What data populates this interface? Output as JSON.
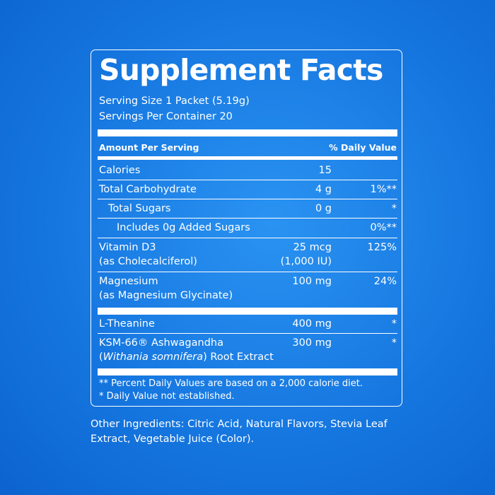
{
  "title": "Supplement Facts",
  "serving_size": "Serving Size 1 Packet (5.19g)",
  "servings_per_container": "Servings Per Container 20",
  "header": {
    "amount_per_serving": "Amount Per Serving",
    "daily_value": "% Daily Value"
  },
  "rows": {
    "calories": {
      "name": "Calories",
      "amount": "15",
      "dv": ""
    },
    "total_carbohydrate": {
      "name": "Total Carbohydrate",
      "amount": "4 g",
      "dv": "1%**"
    },
    "total_sugars": {
      "name": "Total Sugars",
      "amount": "0 g",
      "dv": "*"
    },
    "added_sugars": {
      "name": "Includes 0g Added Sugars",
      "amount": "",
      "dv": "0%**"
    },
    "vitamin_d3": {
      "name": "Vitamin D3",
      "sub": "(as Cholecalciferol)",
      "amount": "25 mcg",
      "amount2": "(1,000 IU)",
      "dv": "125%"
    },
    "magnesium": {
      "name": "Magnesium",
      "sub": "(as Magnesium Glycinate)",
      "amount": "100 mg",
      "dv": "24%"
    },
    "l_theanine": {
      "name": "L-Theanine",
      "amount": "400 mg",
      "dv": "*"
    },
    "ashwagandha": {
      "name": "KSM-66® Ashwagandha",
      "sub_open": "(",
      "sub_italic": "Withania somnifera",
      "sub_rest": ") Root Extract",
      "amount": "300 mg",
      "dv": "*"
    }
  },
  "footnotes": {
    "line1": "** Percent Daily Values are based on a 2,000 calorie diet.",
    "line2": "* Daily Value not established."
  },
  "other_ingredients": "Other Ingredients: Citric Acid, Natural Flavors, Stevia Leaf Extract, Vegetable Juice (Color).",
  "colors": {
    "background": "#1677e0",
    "foreground": "#ffffff"
  }
}
